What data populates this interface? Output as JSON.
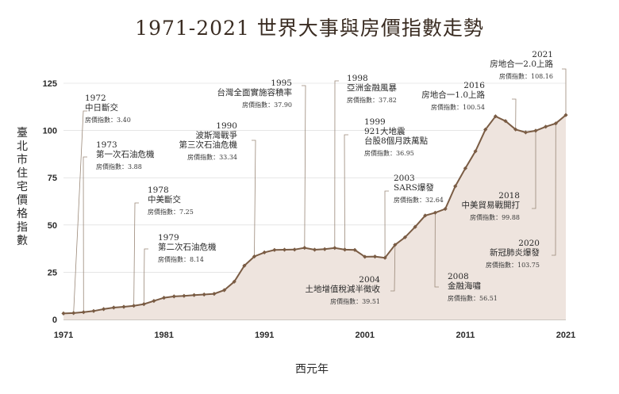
{
  "colors": {
    "line": "#7a5c44",
    "area": "#eee4de",
    "leader": "#9a8878",
    "grid": "#d6d6d6"
  },
  "chart_data": {
    "type": "area",
    "title": "1971-2021 世界大事與房價指數走勢",
    "xlabel": "西元年",
    "ylabel": "臺北市住宅價格指數",
    "xlim": [
      1971,
      2021
    ],
    "ylim": [
      0,
      125
    ],
    "xticks": [
      1971,
      1981,
      1991,
      2001,
      2011,
      2021
    ],
    "yticks": [
      0,
      25,
      50,
      75,
      100,
      125
    ],
    "grid": true,
    "series": [
      {
        "x": [
          1971,
          1972,
          1973,
          1974,
          1975,
          1976,
          1977,
          1978,
          1979,
          1980,
          1981,
          1982,
          1983,
          1984,
          1985,
          1986,
          1987,
          1988,
          1989,
          1990,
          1991,
          1992,
          1993,
          1994,
          1995,
          1996,
          1997,
          1998,
          1999,
          2000,
          2001,
          2002,
          2003,
          2004,
          2005,
          2006,
          2007,
          2008,
          2009,
          2010,
          2011,
          2012,
          2013,
          2014,
          2015,
          2016,
          2017,
          2018,
          2019,
          2020,
          2021
        ],
        "values": [
          3.2,
          3.4,
          3.88,
          4.5,
          5.5,
          6.3,
          6.7,
          7.25,
          8.14,
          9.8,
          11.5,
          12.2,
          12.5,
          12.9,
          13.2,
          13.6,
          15.5,
          20.0,
          28.5,
          33.34,
          35.5,
          36.8,
          36.9,
          37.0,
          37.9,
          36.9,
          37.2,
          37.82,
          36.95,
          36.8,
          33.2,
          33.3,
          32.64,
          39.51,
          43.5,
          49.0,
          55.0,
          56.51,
          58.5,
          70.5,
          80.0,
          89.0,
          100.5,
          107.5,
          105.0,
          100.54,
          99.0,
          99.88,
          102.0,
          103.75,
          108.16
        ]
      }
    ],
    "annotations": [
      {
        "year": "1972",
        "title": "中日斷交",
        "index_label": "房價指數：3.40",
        "x": 1972,
        "y": 3.4
      },
      {
        "year": "1973",
        "title": "第一次石油危機",
        "index_label": "房價指數：3.88",
        "x": 1973,
        "y": 3.88
      },
      {
        "year": "1978",
        "title": "中美斷交",
        "index_label": "房價指數：7.25",
        "x": 1978,
        "y": 7.25
      },
      {
        "year": "1979",
        "title": "第二次石油危機",
        "index_label": "房價指數：8.14",
        "x": 1979,
        "y": 8.14
      },
      {
        "year": "1990",
        "title": "波斯灣戰爭",
        "title2": "第三次石油危機",
        "index_label": "房價指數：33.34",
        "x": 1990,
        "y": 33.34
      },
      {
        "year": "1995",
        "title": "台灣全面實施容積率",
        "index_label": "房價指數：37.90",
        "x": 1995,
        "y": 37.9
      },
      {
        "year": "1998",
        "title": "亞洲金融風暴",
        "index_label": "房價指數：37.82",
        "x": 1998,
        "y": 37.82
      },
      {
        "year": "1999",
        "title": "921大地震",
        "title2": "台股8個月跌萬點",
        "index_label": "房價指數：36.95",
        "x": 1999,
        "y": 36.95
      },
      {
        "year": "2003",
        "title": "SARS爆發",
        "index_label": "房價指數：32.64",
        "x": 2003,
        "y": 32.64
      },
      {
        "year": "2004",
        "title": "土地增值稅減半徵收",
        "index_label": "房價指數：39.51",
        "x": 2004,
        "y": 39.51
      },
      {
        "year": "2008",
        "title": "金融海嘯",
        "index_label": "房價指數：56.51",
        "x": 2008,
        "y": 56.51
      },
      {
        "year": "2016",
        "title": "房地合一1.0上路",
        "index_label": "房價指數：100.54",
        "x": 2016,
        "y": 100.54
      },
      {
        "year": "2018",
        "title": "中美貿易戰開打",
        "index_label": "房價指數：99.88",
        "x": 2018,
        "y": 99.88
      },
      {
        "year": "2020",
        "title": "新冠肺炎爆發",
        "index_label": "房價指數：103.75",
        "x": 2020,
        "y": 103.75
      },
      {
        "year": "2021",
        "title": "房地合一2.0上路",
        "index_label": "房價指數：108.16",
        "x": 2021,
        "y": 108.16
      }
    ]
  }
}
